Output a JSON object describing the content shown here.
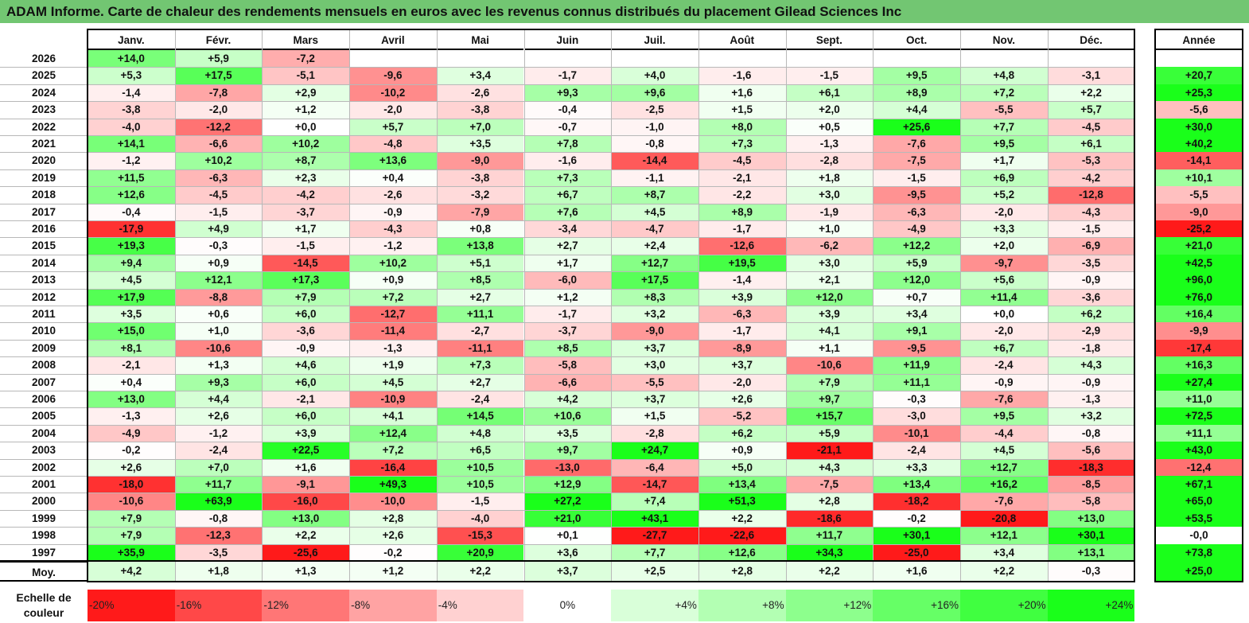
{
  "title": "ADAM Informe. Carte de chaleur des rendements mensuels en euros avec les revenus connus distribués du placement Gilead Sciences Inc",
  "chart_data": {
    "type": "heatmap",
    "columns": [
      "Janv.",
      "Févr.",
      "Mars",
      "Avril",
      "Mai",
      "Juin",
      "Juil.",
      "Août",
      "Sept.",
      "Oct.",
      "Nov.",
      "Déc."
    ],
    "year_column": "Année",
    "rows": [
      {
        "label": "2026",
        "values": [
          14.0,
          5.9,
          -7.2,
          null,
          null,
          null,
          null,
          null,
          null,
          null,
          null,
          null
        ],
        "year": null
      },
      {
        "label": "2025",
        "values": [
          5.3,
          17.5,
          -5.1,
          -9.6,
          3.4,
          -1.7,
          4.0,
          -1.6,
          -1.5,
          9.5,
          4.8,
          -3.1
        ],
        "year": 20.7
      },
      {
        "label": "2024",
        "values": [
          -1.4,
          -7.8,
          2.9,
          -10.2,
          -2.6,
          9.3,
          9.6,
          1.6,
          6.1,
          8.9,
          7.2,
          2.2
        ],
        "year": 25.3
      },
      {
        "label": "2023",
        "values": [
          -3.8,
          -2.0,
          1.2,
          -2.0,
          -3.8,
          -0.4,
          -2.5,
          1.5,
          2.0,
          4.4,
          -5.5,
          5.7
        ],
        "year": -5.6
      },
      {
        "label": "2022",
        "values": [
          -4.0,
          -12.2,
          0.0,
          5.7,
          7.0,
          -0.7,
          -1.0,
          8.0,
          0.5,
          25.6,
          7.7,
          -4.5
        ],
        "year": 30.0
      },
      {
        "label": "2021",
        "values": [
          14.1,
          -6.6,
          10.2,
          -4.8,
          3.5,
          7.8,
          -0.8,
          7.3,
          -1.3,
          -7.6,
          9.5,
          6.1
        ],
        "year": 40.2
      },
      {
        "label": "2020",
        "values": [
          -1.2,
          10.2,
          8.7,
          13.6,
          -9.0,
          -1.6,
          -14.4,
          -4.5,
          -2.8,
          -7.5,
          1.7,
          -5.3
        ],
        "year": -14.1
      },
      {
        "label": "2019",
        "values": [
          11.5,
          -6.3,
          2.3,
          0.4,
          -3.8,
          7.3,
          -1.1,
          -2.1,
          1.8,
          -1.5,
          6.9,
          -4.2
        ],
        "year": 10.1
      },
      {
        "label": "2018",
        "values": [
          12.6,
          -4.5,
          -4.2,
          -2.6,
          -3.2,
          6.7,
          8.7,
          -2.2,
          3.0,
          -9.5,
          5.2,
          -12.8
        ],
        "year": -5.5
      },
      {
        "label": "2017",
        "values": [
          -0.4,
          -1.5,
          -3.7,
          -0.9,
          -7.9,
          7.6,
          4.5,
          8.9,
          -1.9,
          -6.3,
          -2.0,
          -4.3
        ],
        "year": -9.0
      },
      {
        "label": "2016",
        "values": [
          -17.9,
          4.9,
          1.7,
          -4.3,
          0.8,
          -3.4,
          -4.7,
          -1.7,
          1.0,
          -4.9,
          3.3,
          -1.5
        ],
        "year": -25.2
      },
      {
        "label": "2015",
        "values": [
          19.3,
          -0.3,
          -1.5,
          -1.2,
          13.8,
          2.7,
          2.4,
          -12.6,
          -6.2,
          12.2,
          2.0,
          -6.9
        ],
        "year": 21.0
      },
      {
        "label": "2014",
        "values": [
          9.4,
          0.9,
          -14.5,
          10.2,
          5.1,
          1.7,
          12.7,
          19.5,
          3.0,
          5.9,
          -9.7,
          -3.5
        ],
        "year": 42.5
      },
      {
        "label": "2013",
        "values": [
          4.5,
          12.1,
          17.3,
          0.9,
          8.5,
          -6.0,
          17.5,
          -1.4,
          2.1,
          12.0,
          5.6,
          -0.9
        ],
        "year": 96.0
      },
      {
        "label": "2012",
        "values": [
          17.9,
          -8.8,
          7.9,
          7.2,
          2.7,
          1.2,
          8.3,
          3.9,
          12.0,
          0.7,
          11.4,
          -3.6
        ],
        "year": 76.0
      },
      {
        "label": "2011",
        "values": [
          3.5,
          0.6,
          6.0,
          -12.7,
          11.1,
          -1.7,
          3.2,
          -6.3,
          3.9,
          3.4,
          0.0,
          6.2
        ],
        "year": 16.4
      },
      {
        "label": "2010",
        "values": [
          15.0,
          1.0,
          -3.6,
          -11.4,
          -2.7,
          -3.7,
          -9.0,
          -1.7,
          4.1,
          9.1,
          -2.0,
          -2.9
        ],
        "year": -9.9
      },
      {
        "label": "2009",
        "values": [
          8.1,
          -10.6,
          -0.9,
          -1.3,
          -11.1,
          8.5,
          3.7,
          -8.9,
          1.1,
          -9.5,
          6.7,
          -1.8
        ],
        "year": -17.4
      },
      {
        "label": "2008",
        "values": [
          -2.1,
          1.3,
          4.6,
          1.9,
          7.3,
          -5.8,
          3.0,
          3.7,
          -10.6,
          11.9,
          -2.4,
          4.3
        ],
        "year": 16.3
      },
      {
        "label": "2007",
        "values": [
          0.4,
          9.3,
          6.0,
          4.5,
          2.7,
          -6.6,
          -5.5,
          -2.0,
          7.9,
          11.1,
          -0.9,
          -0.9
        ],
        "year": 27.4
      },
      {
        "label": "2006",
        "values": [
          13.0,
          4.4,
          -2.1,
          -10.9,
          -2.4,
          4.2,
          3.7,
          2.6,
          9.7,
          -0.3,
          -7.6,
          -1.3
        ],
        "year": 11.0
      },
      {
        "label": "2005",
        "values": [
          -1.3,
          2.6,
          6.0,
          4.1,
          14.5,
          10.6,
          1.5,
          -5.2,
          15.7,
          -3.0,
          9.5,
          3.2
        ],
        "year": 72.5
      },
      {
        "label": "2004",
        "values": [
          -4.9,
          -1.2,
          3.9,
          12.4,
          4.8,
          3.5,
          -2.8,
          6.2,
          5.9,
          -10.1,
          -4.4,
          -0.8
        ],
        "year": 11.1
      },
      {
        "label": "2003",
        "values": [
          -0.2,
          -2.4,
          22.5,
          7.2,
          6.5,
          9.7,
          24.7,
          0.9,
          -21.1,
          -2.4,
          4.5,
          -5.6
        ],
        "year": 43.0
      },
      {
        "label": "2002",
        "values": [
          2.6,
          7.0,
          1.6,
          -16.4,
          10.5,
          -13.0,
          -6.4,
          5.0,
          4.3,
          3.3,
          12.7,
          -18.3
        ],
        "year": -12.4
      },
      {
        "label": "2001",
        "values": [
          -18.0,
          11.7,
          -9.1,
          49.3,
          10.5,
          12.9,
          -14.7,
          13.4,
          -7.5,
          13.4,
          16.2,
          -8.5
        ],
        "year": 67.1
      },
      {
        "label": "2000",
        "values": [
          -10.6,
          63.9,
          -16.0,
          -10.0,
          -1.5,
          27.2,
          7.4,
          51.3,
          2.8,
          -18.2,
          -7.6,
          -5.8
        ],
        "year": 65.0
      },
      {
        "label": "1999",
        "values": [
          7.9,
          -0.8,
          13.0,
          2.8,
          -4.0,
          21.0,
          43.1,
          2.2,
          -18.6,
          -0.2,
          -20.8,
          13.0
        ],
        "year": 53.5
      },
      {
        "label": "1998",
        "values": [
          7.9,
          -12.3,
          2.2,
          2.6,
          -15.3,
          0.1,
          -27.7,
          -22.6,
          11.7,
          30.1,
          12.1,
          30.1
        ],
        "year": -0.0
      },
      {
        "label": "1997",
        "values": [
          35.9,
          -3.5,
          -25.6,
          -0.2,
          20.9,
          3.6,
          7.7,
          12.6,
          34.3,
          -25.0,
          3.4,
          13.1
        ],
        "year": 73.8
      }
    ],
    "average": {
      "label": "Moy.",
      "values": [
        4.2,
        1.8,
        1.3,
        1.2,
        2.2,
        3.7,
        2.5,
        2.8,
        2.2,
        1.6,
        2.2,
        -0.3
      ],
      "year": 25.0
    },
    "scale": {
      "label_line1": "Echelle de",
      "label_line2": "couleur",
      "items": [
        {
          "text": "-20%",
          "value": -20
        },
        {
          "text": "-16%",
          "value": -16
        },
        {
          "text": "-12%",
          "value": -12
        },
        {
          "text": "-8%",
          "value": -8
        },
        {
          "text": "-4%",
          "value": -4
        },
        {
          "text": "0%",
          "value": 0
        },
        {
          "text": "+4%",
          "value": 4
        },
        {
          "text": "+8%",
          "value": 8
        },
        {
          "text": "+12%",
          "value": 12
        },
        {
          "text": "+16%",
          "value": 16
        },
        {
          "text": "+20%",
          "value": 20
        },
        {
          "text": "+24%",
          "value": 24
        }
      ]
    },
    "colors": {
      "negative_max": "#ff0000",
      "positive_max": "#00ff00",
      "neutral": "#ffffff",
      "title_bar": "#72c672"
    }
  }
}
